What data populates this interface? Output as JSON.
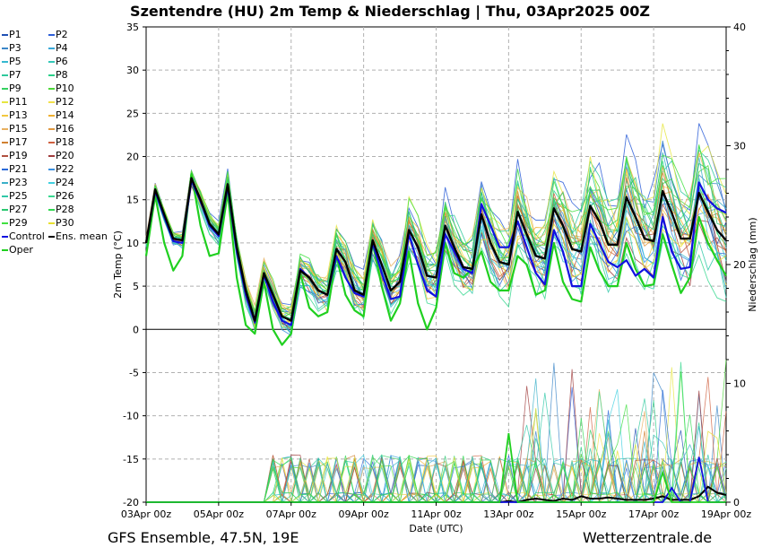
{
  "title": "Szentendre  (HU)  2m Temp & Niederschlag | Thu, 03Apr2025 00Z",
  "footer": {
    "left": "GFS Ensemble, 47.5N, 19E",
    "right": "Wetterzentrale.de"
  },
  "legend": [
    {
      "name": "P1",
      "color": "#1f4fb4"
    },
    {
      "name": "P2",
      "color": "#2e5fd8"
    },
    {
      "name": "P3",
      "color": "#3b86c8"
    },
    {
      "name": "P4",
      "color": "#38a8d8"
    },
    {
      "name": "P5",
      "color": "#35b8d0"
    },
    {
      "name": "P6",
      "color": "#33c8b8"
    },
    {
      "name": "P7",
      "color": "#2ec99c"
    },
    {
      "name": "P8",
      "color": "#2ad08a"
    },
    {
      "name": "P9",
      "color": "#35d060"
    },
    {
      "name": "P10",
      "color": "#4cd838"
    },
    {
      "name": "P11",
      "color": "#e6e640"
    },
    {
      "name": "P12",
      "color": "#f2e04a"
    },
    {
      "name": "P13",
      "color": "#f2c840"
    },
    {
      "name": "P14",
      "color": "#f0b030"
    },
    {
      "name": "P15",
      "color": "#e8b060"
    },
    {
      "name": "P16",
      "color": "#e09840"
    },
    {
      "name": "P17",
      "color": "#d08030"
    },
    {
      "name": "P18",
      "color": "#d06040"
    },
    {
      "name": "P19",
      "color": "#b05040"
    },
    {
      "name": "P20",
      "color": "#a03c3c"
    },
    {
      "name": "P21",
      "color": "#2a6ad8"
    },
    {
      "name": "P22",
      "color": "#3a90e0"
    },
    {
      "name": "P23",
      "color": "#3ab0c8"
    },
    {
      "name": "P24",
      "color": "#40d0e0"
    },
    {
      "name": "P25",
      "color": "#30c8a8"
    },
    {
      "name": "P26",
      "color": "#38d890"
    },
    {
      "name": "P27",
      "color": "#2ac870"
    },
    {
      "name": "P28",
      "color": "#30d850"
    },
    {
      "name": "P29",
      "color": "#40e040"
    },
    {
      "name": "P30",
      "color": "#e8e030"
    },
    {
      "name": "Control",
      "color": "#1010e0"
    },
    {
      "name": "Ens. mean",
      "color": "#000000"
    },
    {
      "name": "Oper",
      "color": "#20d020"
    }
  ],
  "chart_data": {
    "type": "line",
    "title": "Szentendre  (HU)  2m Temp & Niederschlag | Thu, 03Apr2025 00Z",
    "xlabel": "Date (UTC)",
    "ylabel": "2m Temp (°C)",
    "y2label": "Niederschlag (mm)",
    "x_hours": [
      0,
      6,
      12,
      18,
      24,
      30,
      36,
      42,
      48,
      54,
      60,
      66,
      72,
      78,
      84,
      90,
      96,
      102,
      108,
      114,
      120,
      126,
      132,
      138,
      144,
      150,
      156,
      162,
      168,
      174,
      180,
      186,
      192,
      198,
      204,
      210,
      216,
      222,
      228,
      234,
      240,
      246,
      252,
      258,
      264,
      270,
      276,
      282,
      288,
      294,
      300,
      306,
      312,
      318,
      324,
      330,
      336,
      342,
      348,
      354,
      360,
      366,
      372,
      378,
      384
    ],
    "x_tick_labels": [
      "03Apr 00z",
      "05Apr 00z",
      "07Apr 00z",
      "09Apr 00z",
      "11Apr 00z",
      "13Apr 00z",
      "15Apr 00z",
      "17Apr 00z",
      "19Apr 00z"
    ],
    "x_tick_hours": [
      0,
      48,
      96,
      144,
      192,
      240,
      288,
      336,
      384
    ],
    "ylim": [
      -20,
      35
    ],
    "yticks": [
      -20,
      -15,
      -10,
      -5,
      0,
      5,
      10,
      15,
      20,
      25,
      30,
      35
    ],
    "y2lim": [
      0,
      40
    ],
    "y2ticks": [
      0,
      10,
      20,
      30,
      40
    ],
    "temperature_series": [
      {
        "name": "Ens. mean",
        "values": [
          10,
          16.2,
          13.3,
          10.5,
          10.3,
          17.5,
          15,
          12.2,
          11,
          16.8,
          9.5,
          4.5,
          1,
          6.5,
          4,
          1.5,
          1,
          6.8,
          6,
          4.5,
          4,
          9.3,
          7.8,
          4.5,
          4,
          10.3,
          7.5,
          4.5,
          5.5,
          11.5,
          9.5,
          6.2,
          6,
          12,
          9.5,
          7.2,
          7,
          13.3,
          10,
          7.8,
          7.5,
          13.6,
          11,
          8.5,
          8.2,
          14,
          12,
          9.3,
          9,
          14.3,
          12.5,
          9.8,
          9.8,
          15.3,
          13,
          10.5,
          10.2,
          16,
          13.5,
          10.5,
          10.5,
          15.8,
          13.6,
          11.5,
          10.3
        ]
      },
      {
        "name": "Control",
        "values": [
          10,
          16,
          13,
          10.2,
          10,
          17.2,
          14.8,
          12,
          10.8,
          16.5,
          9,
          4,
          0.8,
          6.3,
          3.2,
          1,
          0.5,
          7,
          6,
          4.5,
          4,
          8.5,
          6,
          4.2,
          3.8,
          10,
          6.5,
          3.5,
          3.8,
          11,
          7.5,
          4.5,
          3.8,
          11,
          9,
          7,
          6.5,
          14.5,
          12,
          9.5,
          9.5,
          12.5,
          9.5,
          6.5,
          5.2,
          11.5,
          9,
          5,
          5,
          12.2,
          10,
          7.8,
          7.2,
          8,
          6.2,
          7,
          6,
          13,
          9,
          7,
          7.2,
          17,
          15,
          14,
          13.5
        ]
      },
      {
        "name": "Oper",
        "values": [
          8.5,
          15.5,
          10,
          6.8,
          8.5,
          18,
          12,
          8.5,
          8.8,
          15.8,
          6,
          0.5,
          -0.5,
          5.5,
          0,
          -1.8,
          -0.5,
          6.5,
          2.5,
          1.5,
          2,
          8.5,
          4,
          2.2,
          1.5,
          10,
          5,
          1,
          3,
          9,
          3,
          0,
          2.5,
          10,
          6.5,
          6,
          7,
          9,
          5.5,
          4.5,
          4.5,
          8.5,
          7.5,
          4,
          4.5,
          10,
          5.5,
          3.5,
          3.2,
          9.5,
          6.8,
          5,
          5,
          10,
          7,
          5,
          5.2,
          11,
          7.5,
          4.2,
          6,
          13,
          10,
          8,
          6.2
        ]
      }
    ],
    "precipitation_series": [
      {
        "name": "Ens. mean",
        "values": [
          0,
          0,
          0,
          0,
          0,
          0,
          0,
          0,
          0,
          0,
          0,
          0,
          0,
          0,
          0,
          0,
          0,
          0,
          0,
          0,
          0,
          0,
          0,
          0,
          0,
          0,
          0,
          0,
          0,
          0,
          0,
          0,
          0,
          0,
          0,
          0,
          0,
          0,
          0,
          0,
          0.1,
          0,
          0.2,
          0.3,
          0.2,
          0.1,
          0.3,
          0.2,
          0.5,
          0.3,
          0.3,
          0.4,
          0.3,
          0.2,
          0.2,
          0.2,
          0.3,
          0.5,
          0.2,
          0.2,
          0.2,
          0.5,
          1.3,
          0.8,
          0.6
        ]
      },
      {
        "name": "Control",
        "values": [
          0,
          0,
          0,
          0,
          0,
          0,
          0,
          0,
          0,
          0,
          0,
          0,
          0,
          0,
          0,
          0,
          0,
          0,
          0,
          0,
          0,
          0,
          0,
          0,
          0,
          0,
          0,
          0,
          0,
          0,
          0,
          0,
          0,
          0,
          0,
          0,
          0,
          0,
          0,
          0,
          0,
          0,
          0,
          0,
          0,
          0,
          0,
          0,
          0,
          0,
          0,
          0,
          0,
          0,
          0,
          0,
          0,
          0,
          1.2,
          0,
          0,
          3.8,
          0,
          0,
          0
        ]
      },
      {
        "name": "Oper",
        "values": [
          0,
          0,
          0,
          0,
          0,
          0,
          0,
          0,
          0,
          0,
          0,
          0,
          0,
          0,
          0,
          0,
          0,
          0,
          0,
          0,
          0,
          0,
          0,
          0,
          0,
          0,
          0,
          0,
          0,
          0,
          0,
          0,
          0,
          0,
          0,
          0,
          0,
          0,
          0,
          0,
          5.8,
          0,
          0,
          0,
          0,
          0,
          0,
          0,
          0,
          0,
          0,
          0,
          0,
          0,
          0,
          0,
          0,
          2.5,
          0,
          0,
          0,
          0,
          0,
          0,
          0
        ]
      }
    ]
  }
}
